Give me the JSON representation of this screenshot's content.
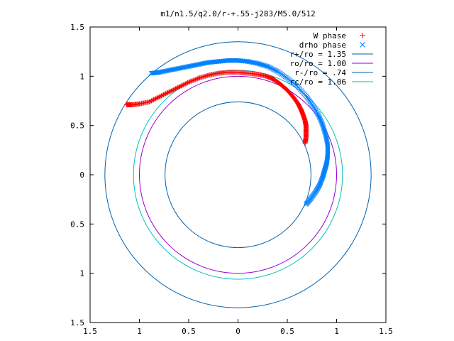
{
  "chart_data": {
    "type": "scatter",
    "title": "m1/n1.5/q2.0/r-+.55-j283/M5.0/512",
    "xlabel": "",
    "ylabel": "",
    "xlim": [
      -1.5,
      1.5
    ],
    "ylim": [
      -1.5,
      1.5
    ],
    "x_ticks": [
      {
        "value": -1.5,
        "label": "1.5"
      },
      {
        "value": -1,
        "label": "1"
      },
      {
        "value": -0.5,
        "label": "0.5"
      },
      {
        "value": 0,
        "label": "0"
      },
      {
        "value": 0.5,
        "label": "0.5"
      },
      {
        "value": 1,
        "label": "1"
      },
      {
        "value": 1.5,
        "label": "1.5"
      }
    ],
    "y_ticks": [
      {
        "value": 1.5,
        "label": "1.5"
      },
      {
        "value": 1,
        "label": "1"
      },
      {
        "value": 0.5,
        "label": "0.5"
      },
      {
        "value": 0,
        "label": "0"
      },
      {
        "value": -0.5,
        "label": "0.5"
      },
      {
        "value": -1,
        "label": "1"
      },
      {
        "value": -1.5,
        "label": "1.5"
      }
    ],
    "grid": false,
    "legend_position": "top-right",
    "point_series": [
      {
        "name": "W phase",
        "marker": "plus",
        "color": "#ff0000",
        "points": [
          [
            0.68,
            0.32
          ],
          [
            0.69,
            0.38
          ],
          [
            0.69,
            0.44
          ],
          [
            0.69,
            0.5
          ],
          [
            0.68,
            0.55
          ],
          [
            0.66,
            0.61
          ],
          [
            0.64,
            0.66
          ],
          [
            0.61,
            0.72
          ],
          [
            0.56,
            0.79
          ],
          [
            0.5,
            0.86
          ],
          [
            0.43,
            0.92
          ],
          [
            0.36,
            0.97
          ],
          [
            0.29,
            1.0
          ],
          [
            0.2,
            1.02
          ],
          [
            0.1,
            1.03
          ],
          [
            0.0,
            1.04
          ],
          [
            -0.1,
            1.04
          ],
          [
            -0.2,
            1.03
          ],
          [
            -0.3,
            1.01
          ],
          [
            -0.4,
            0.98
          ],
          [
            -0.5,
            0.94
          ],
          [
            -0.6,
            0.89
          ],
          [
            -0.7,
            0.84
          ],
          [
            -0.8,
            0.79
          ],
          [
            -0.9,
            0.74
          ],
          [
            -1.0,
            0.72
          ],
          [
            -1.08,
            0.71
          ],
          [
            -1.13,
            0.71
          ]
        ]
      },
      {
        "name": "drho phase",
        "marker": "cross",
        "color": "#0080ff",
        "points": [
          [
            0.69,
            -0.3
          ],
          [
            0.74,
            -0.24
          ],
          [
            0.79,
            -0.17
          ],
          [
            0.83,
            -0.1
          ],
          [
            0.86,
            -0.02
          ],
          [
            0.88,
            0.05
          ],
          [
            0.9,
            0.12
          ],
          [
            0.91,
            0.2
          ],
          [
            0.91,
            0.3
          ],
          [
            0.89,
            0.4
          ],
          [
            0.86,
            0.5
          ],
          [
            0.82,
            0.6
          ],
          [
            0.76,
            0.7
          ],
          [
            0.69,
            0.8
          ],
          [
            0.6,
            0.9
          ],
          [
            0.5,
            0.98
          ],
          [
            0.4,
            1.05
          ],
          [
            0.3,
            1.1
          ],
          [
            0.2,
            1.13
          ],
          [
            0.1,
            1.15
          ],
          [
            0.0,
            1.16
          ],
          [
            -0.1,
            1.16
          ],
          [
            -0.2,
            1.15
          ],
          [
            -0.3,
            1.14
          ],
          [
            -0.4,
            1.12
          ],
          [
            -0.5,
            1.1
          ],
          [
            -0.6,
            1.08
          ],
          [
            -0.7,
            1.06
          ],
          [
            -0.8,
            1.04
          ],
          [
            -0.88,
            1.03
          ]
        ]
      }
    ],
    "circle_series": [
      {
        "name": "r+/ro = 1.35",
        "radius": 1.35,
        "color": "#0060ad"
      },
      {
        "name": "ro/ro = 1.00",
        "radius": 1.0,
        "color": "#9400d3"
      },
      {
        "name": "r-/ro = .74",
        "radius": 0.74,
        "color": "#0060ad"
      },
      {
        "name": "rc/ro = 1.06",
        "radius": 1.06,
        "color": "#00c0c0"
      }
    ]
  }
}
